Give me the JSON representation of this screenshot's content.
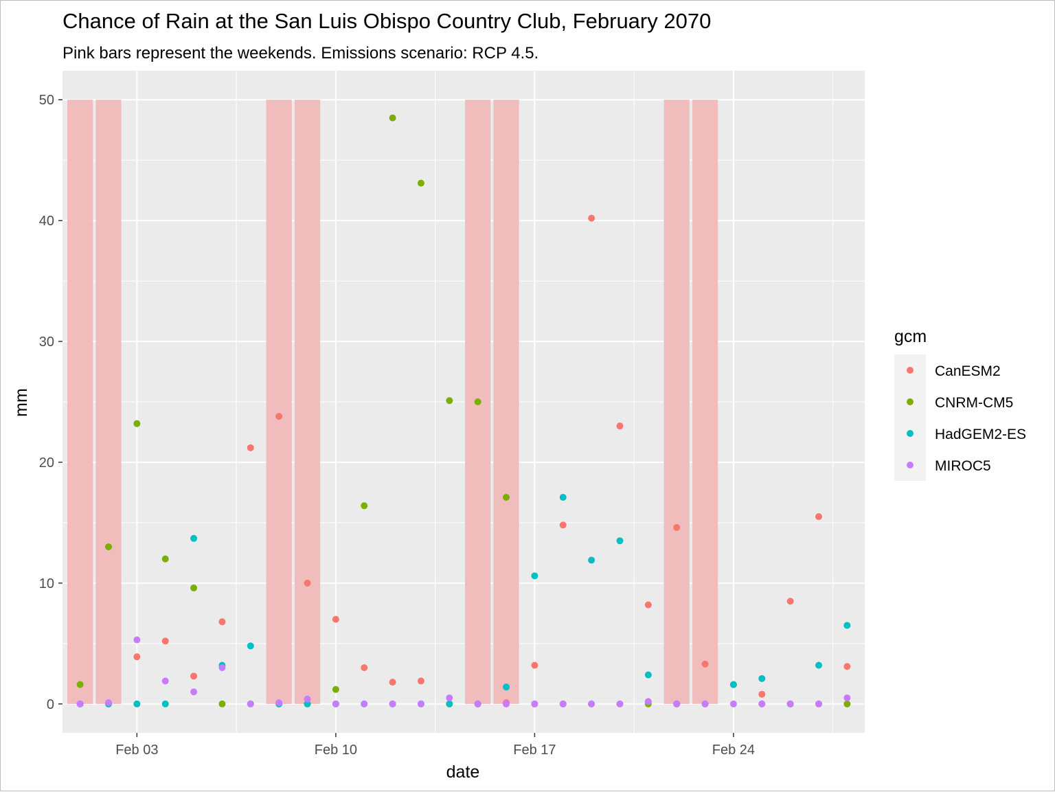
{
  "chart_data": {
    "type": "scatter",
    "title": "Chance of Rain at the San Luis Obispo Country Club, February 2070",
    "subtitle": "Pink bars represent the weekends. Emissions scenario: RCP 4.5.",
    "xlabel": "date",
    "ylabel": "mm",
    "x_tick_labels": [
      "Feb 03",
      "Feb 10",
      "Feb 17",
      "Feb 24"
    ],
    "x_tick_days": [
      3,
      10,
      17,
      24
    ],
    "y_ticks": [
      0,
      10,
      20,
      30,
      40,
      50
    ],
    "xlim_days": [
      0.38,
      28.62
    ],
    "ylim": [
      -2.4,
      52.4
    ],
    "grid": true,
    "legend": {
      "title": "gcm",
      "position": "right"
    },
    "weekend_bars": {
      "days": [
        1,
        2,
        8,
        9,
        15,
        16,
        22,
        23
      ],
      "height": 50,
      "color": "#f0bcbc"
    },
    "x_days": [
      1,
      2,
      3,
      4,
      5,
      6,
      7,
      8,
      9,
      10,
      11,
      12,
      13,
      14,
      15,
      16,
      17,
      18,
      19,
      20,
      21,
      22,
      23,
      24,
      25,
      26,
      27,
      28
    ],
    "series": [
      {
        "name": "CanESM2",
        "color": "#f8766d",
        "values": [
          0,
          0,
          3.9,
          5.2,
          2.3,
          6.8,
          21.2,
          23.8,
          10.0,
          7.0,
          3.0,
          1.8,
          1.9,
          0,
          0,
          0.1,
          3.2,
          14.8,
          40.2,
          23.0,
          8.2,
          14.6,
          3.3,
          1.6,
          0.8,
          8.5,
          15.5,
          3.1
        ]
      },
      {
        "name": "CNRM-CM5",
        "color": "#7cae00",
        "values": [
          1.6,
          13.0,
          23.2,
          12.0,
          9.6,
          0,
          0,
          0,
          0,
          1.2,
          16.4,
          48.5,
          43.1,
          25.1,
          25.0,
          17.1,
          0,
          0,
          0,
          0,
          0,
          0,
          0,
          1.6,
          0,
          0,
          0,
          0
        ]
      },
      {
        "name": "HadGEM2-ES",
        "color": "#00bfc4",
        "values": [
          0,
          0,
          0,
          0,
          13.7,
          3.2,
          4.8,
          0,
          0,
          0,
          0,
          0,
          0,
          0,
          0,
          1.4,
          10.6,
          17.1,
          11.9,
          13.5,
          2.4,
          0,
          0,
          1.6,
          2.1,
          0,
          3.2,
          6.5
        ]
      },
      {
        "name": "MIROC5",
        "color": "#c77cff",
        "values": [
          0,
          0.1,
          5.3,
          1.9,
          1.0,
          3.0,
          0,
          0.1,
          0.4,
          0,
          0,
          0,
          0,
          0.5,
          0,
          0,
          0,
          0,
          0,
          0,
          0.2,
          0,
          0,
          0,
          0,
          0,
          0,
          0.5
        ]
      }
    ]
  }
}
